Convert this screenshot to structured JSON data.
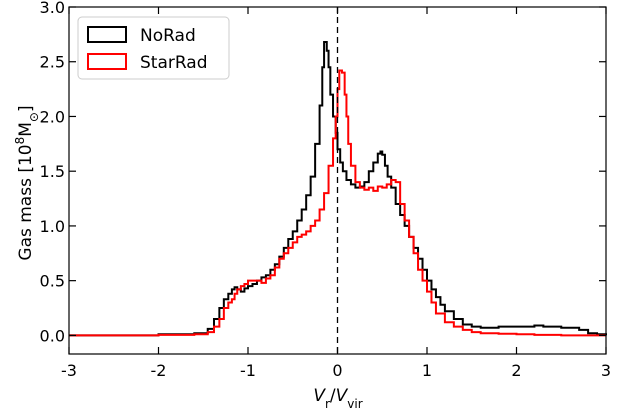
{
  "chart_data": {
    "type": "line",
    "title": "",
    "xlabel": {
      "main": "V",
      "main_sub": "r",
      "sep": "/",
      "den": "V",
      "den_sub": "vir"
    },
    "ylabel": {
      "prefix": "Gas mass [10",
      "exp": "8",
      "unit": "M",
      "unit_sub": "⊙",
      "suffix": "]"
    },
    "xlim": [
      -3,
      3
    ],
    "ylim": [
      -0.17,
      3.0
    ],
    "x_ticks": [
      -3,
      -2,
      -1,
      0,
      1,
      2,
      3
    ],
    "x_tick_labels": [
      "-3",
      "-2",
      "-1",
      "0",
      "1",
      "2",
      "3"
    ],
    "y_ticks": [
      0.0,
      0.5,
      1.0,
      1.5,
      2.0,
      2.5,
      3.0
    ],
    "y_tick_labels": [
      "0.0",
      "0.5",
      "1.0",
      "1.5",
      "2.0",
      "2.5",
      "3.0"
    ],
    "grid": false,
    "legend_position": "top-left",
    "vline": {
      "x": 0,
      "style": "dashed",
      "color": "#000000"
    },
    "series": [
      {
        "name": "NoRad",
        "color": "#000000",
        "step": true,
        "x": [
          -3.0,
          -2.0,
          -1.6,
          -1.45,
          -1.38,
          -1.32,
          -1.27,
          -1.22,
          -1.18,
          -1.15,
          -1.12,
          -1.08,
          -1.04,
          -1.0,
          -0.95,
          -0.9,
          -0.85,
          -0.8,
          -0.75,
          -0.7,
          -0.65,
          -0.6,
          -0.55,
          -0.5,
          -0.45,
          -0.4,
          -0.35,
          -0.3,
          -0.25,
          -0.2,
          -0.17,
          -0.15,
          -0.12,
          -0.1,
          -0.08,
          -0.05,
          -0.02,
          0.0,
          0.03,
          0.06,
          0.1,
          0.15,
          0.2,
          0.25,
          0.3,
          0.35,
          0.4,
          0.45,
          0.48,
          0.5,
          0.53,
          0.56,
          0.6,
          0.65,
          0.7,
          0.75,
          0.8,
          0.85,
          0.9,
          0.95,
          1.0,
          1.05,
          1.1,
          1.15,
          1.2,
          1.3,
          1.4,
          1.5,
          1.6,
          1.7,
          1.8,
          1.9,
          2.0,
          2.1,
          2.2,
          2.3,
          2.4,
          2.5,
          2.6,
          2.7,
          2.8,
          2.9,
          3.0
        ],
        "y": [
          0.0,
          0.01,
          0.02,
          0.06,
          0.15,
          0.25,
          0.33,
          0.38,
          0.42,
          0.44,
          0.42,
          0.4,
          0.43,
          0.45,
          0.47,
          0.5,
          0.53,
          0.55,
          0.6,
          0.65,
          0.72,
          0.8,
          0.88,
          0.95,
          1.05,
          1.15,
          1.28,
          1.45,
          1.75,
          2.1,
          2.45,
          2.68,
          2.6,
          2.45,
          2.2,
          2.0,
          1.85,
          1.7,
          1.58,
          1.5,
          1.42,
          1.38,
          1.35,
          1.36,
          1.4,
          1.5,
          1.58,
          1.66,
          1.68,
          1.65,
          1.55,
          1.45,
          1.35,
          1.2,
          1.1,
          1.0,
          0.9,
          0.8,
          0.7,
          0.6,
          0.5,
          0.42,
          0.35,
          0.28,
          0.22,
          0.15,
          0.1,
          0.08,
          0.07,
          0.07,
          0.08,
          0.08,
          0.08,
          0.08,
          0.09,
          0.08,
          0.08,
          0.07,
          0.07,
          0.05,
          0.02,
          0.01,
          0.0
        ]
      },
      {
        "name": "StarRad",
        "color": "#ff0000",
        "step": true,
        "x": [
          -3.0,
          -2.0,
          -1.6,
          -1.45,
          -1.38,
          -1.32,
          -1.27,
          -1.22,
          -1.18,
          -1.15,
          -1.12,
          -1.08,
          -1.04,
          -1.0,
          -0.95,
          -0.9,
          -0.85,
          -0.8,
          -0.75,
          -0.7,
          -0.65,
          -0.6,
          -0.55,
          -0.5,
          -0.45,
          -0.4,
          -0.35,
          -0.3,
          -0.25,
          -0.2,
          -0.15,
          -0.1,
          -0.05,
          -0.02,
          0.0,
          0.02,
          0.05,
          0.08,
          0.1,
          0.12,
          0.15,
          0.2,
          0.25,
          0.3,
          0.35,
          0.4,
          0.45,
          0.5,
          0.55,
          0.6,
          0.65,
          0.7,
          0.75,
          0.8,
          0.85,
          0.9,
          0.95,
          1.0,
          1.05,
          1.1,
          1.2,
          1.3,
          1.4,
          1.5,
          1.6,
          1.8,
          2.0,
          2.2,
          2.5,
          3.0
        ],
        "y": [
          0.0,
          0.005,
          0.01,
          0.03,
          0.08,
          0.15,
          0.25,
          0.3,
          0.33,
          0.38,
          0.42,
          0.45,
          0.47,
          0.5,
          0.5,
          0.5,
          0.48,
          0.52,
          0.55,
          0.62,
          0.7,
          0.75,
          0.8,
          0.85,
          0.9,
          0.92,
          0.95,
          1.0,
          1.05,
          1.15,
          1.3,
          1.55,
          1.8,
          2.0,
          2.25,
          2.42,
          2.4,
          2.2,
          2.0,
          1.75,
          1.55,
          1.4,
          1.35,
          1.33,
          1.35,
          1.32,
          1.36,
          1.35,
          1.38,
          1.42,
          1.4,
          1.2,
          1.05,
          0.9,
          0.75,
          0.6,
          0.5,
          0.4,
          0.3,
          0.2,
          0.12,
          0.08,
          0.05,
          0.03,
          0.02,
          0.015,
          0.01,
          0.005,
          0.0,
          0.0
        ]
      }
    ]
  }
}
